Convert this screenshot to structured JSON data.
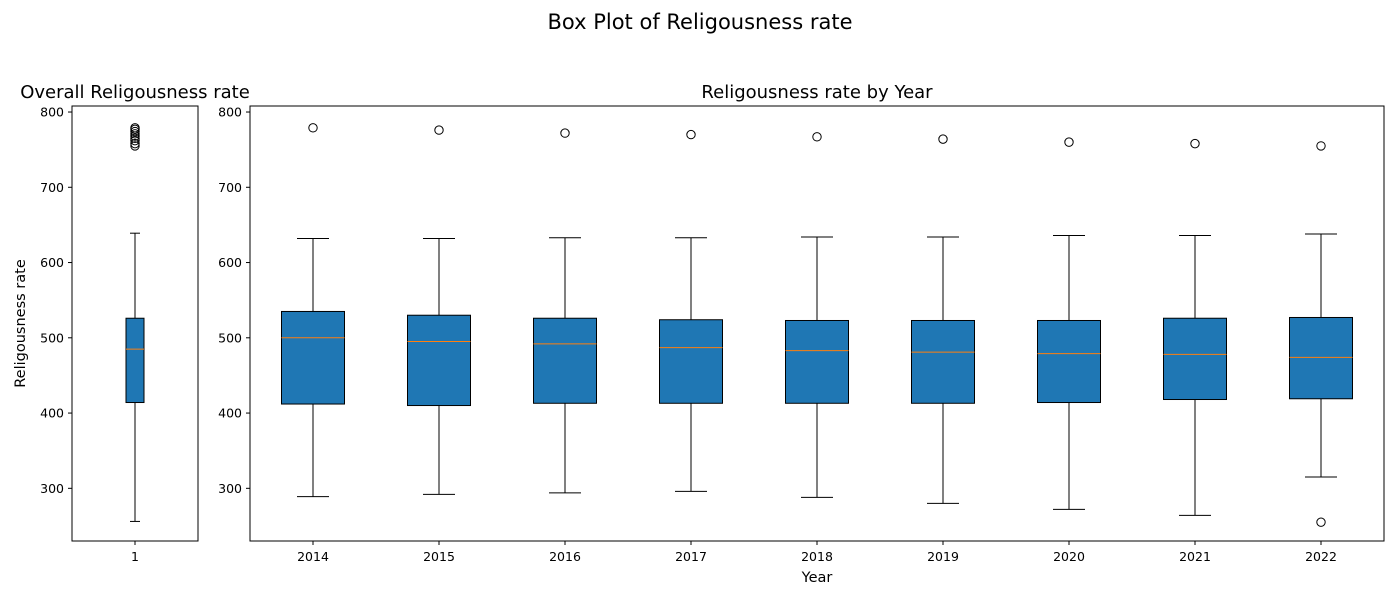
{
  "suptitle": "Box Plot of Religousness rate",
  "colors": {
    "box_fill": "#1f77b4",
    "median": "#ff7f0e",
    "edge": "#000000"
  },
  "chart_data": [
    {
      "type": "box",
      "title": "Overall Religousness rate",
      "xlabel": "",
      "ylabel": "Religousness rate",
      "ylim": [
        230,
        808
      ],
      "yticks": [
        300,
        400,
        500,
        600,
        700,
        800
      ],
      "categories": [
        "1"
      ],
      "boxes": [
        {
          "whisker_low": 256,
          "q1": 414,
          "median": 485,
          "q3": 526,
          "whisker_high": 639,
          "outliers": [
            755,
            758,
            762,
            765,
            768,
            771,
            774,
            777,
            779
          ]
        }
      ]
    },
    {
      "type": "box",
      "title": "Religousness rate by Year",
      "xlabel": "Year",
      "ylabel": "",
      "ylim": [
        230,
        808
      ],
      "yticks": [
        300,
        400,
        500,
        600,
        700,
        800
      ],
      "categories": [
        "2014",
        "2015",
        "2016",
        "2017",
        "2018",
        "2019",
        "2020",
        "2021",
        "2022"
      ],
      "boxes": [
        {
          "whisker_low": 289,
          "q1": 412,
          "median": 500,
          "q3": 535,
          "whisker_high": 632,
          "outliers": [
            779
          ]
        },
        {
          "whisker_low": 292,
          "q1": 410,
          "median": 495,
          "q3": 530,
          "whisker_high": 632,
          "outliers": [
            776
          ]
        },
        {
          "whisker_low": 294,
          "q1": 413,
          "median": 492,
          "q3": 526,
          "whisker_high": 633,
          "outliers": [
            772
          ]
        },
        {
          "whisker_low": 296,
          "q1": 413,
          "median": 487,
          "q3": 524,
          "whisker_high": 633,
          "outliers": [
            770
          ]
        },
        {
          "whisker_low": 288,
          "q1": 413,
          "median": 483,
          "q3": 523,
          "whisker_high": 634,
          "outliers": [
            767
          ]
        },
        {
          "whisker_low": 280,
          "q1": 413,
          "median": 481,
          "q3": 523,
          "whisker_high": 634,
          "outliers": [
            764
          ]
        },
        {
          "whisker_low": 272,
          "q1": 414,
          "median": 479,
          "q3": 523,
          "whisker_high": 636,
          "outliers": [
            760
          ]
        },
        {
          "whisker_low": 264,
          "q1": 418,
          "median": 478,
          "q3": 526,
          "whisker_high": 636,
          "outliers": [
            758
          ]
        },
        {
          "whisker_low": 315,
          "q1": 419,
          "median": 474,
          "q3": 527,
          "whisker_high": 638,
          "outliers": [
            255,
            755
          ]
        }
      ]
    }
  ]
}
